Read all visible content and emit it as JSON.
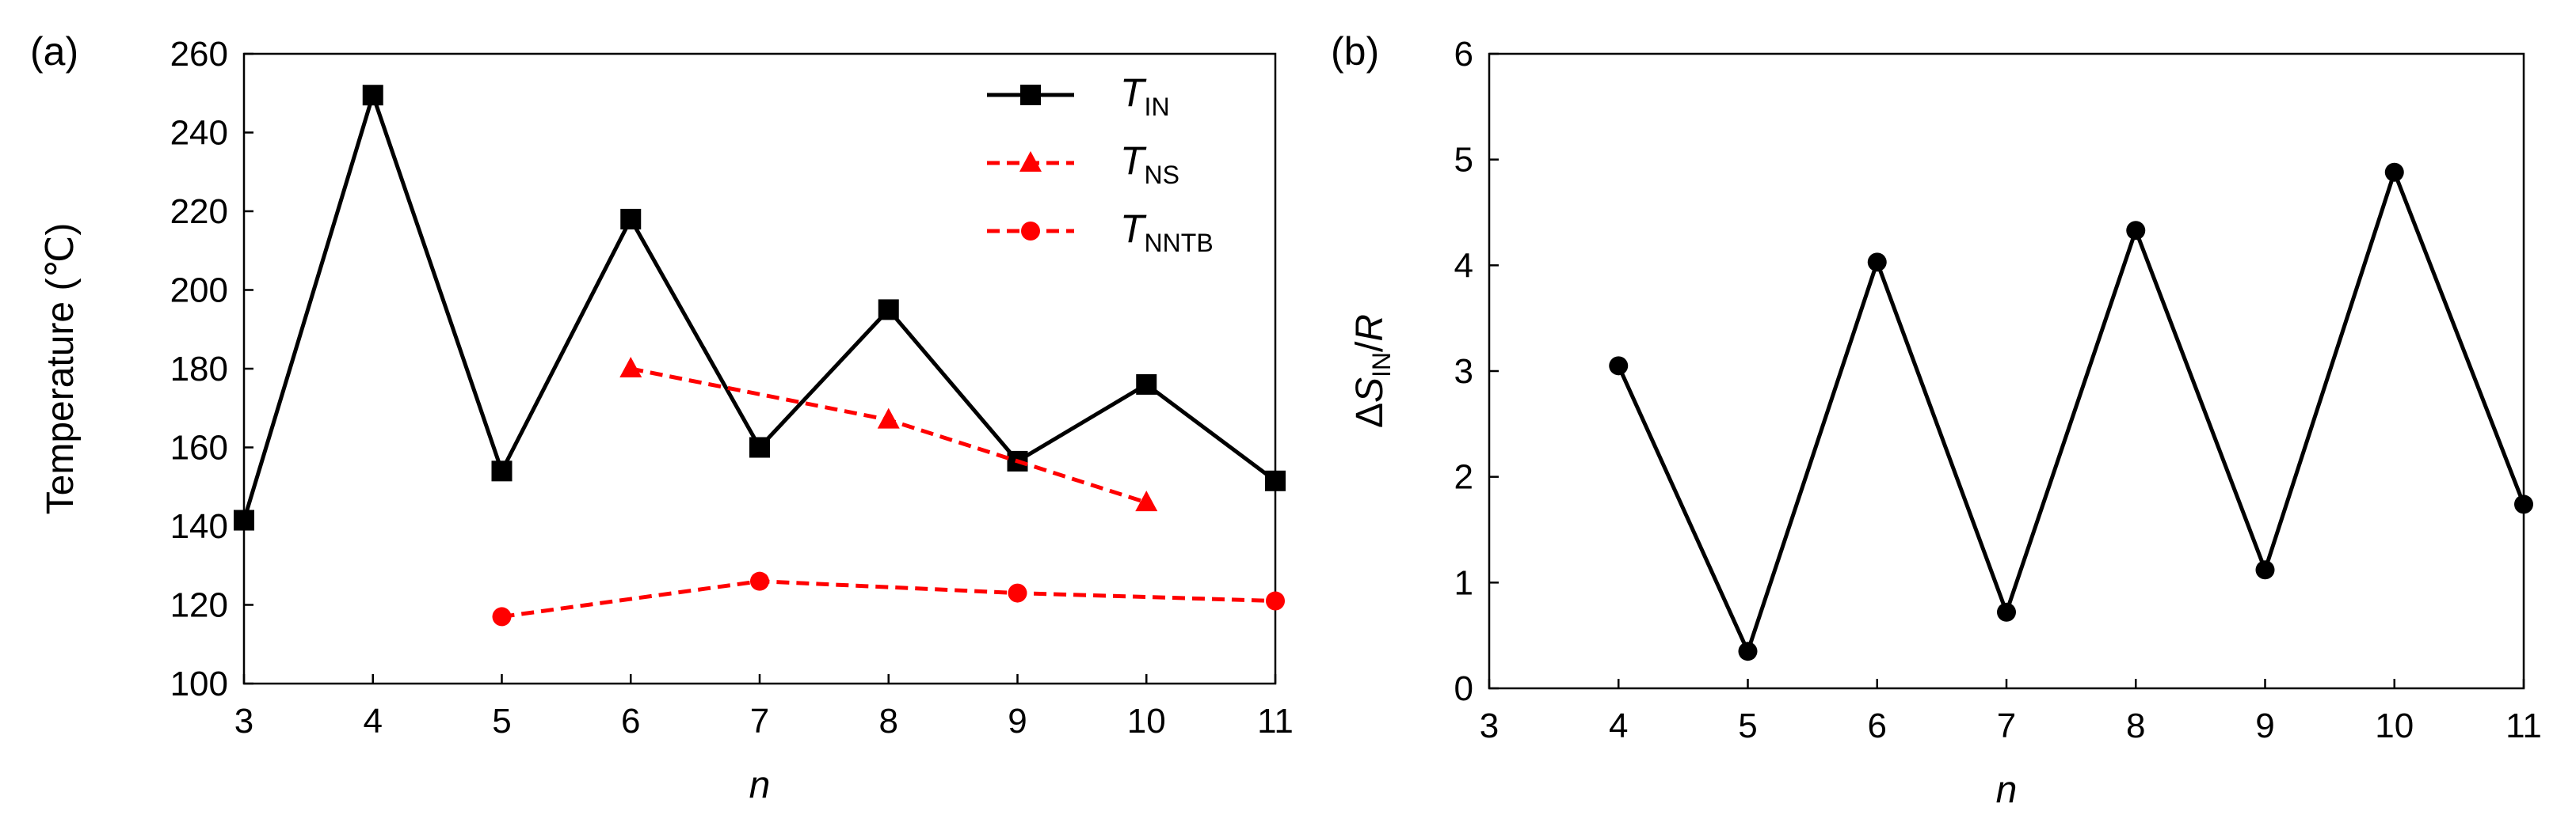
{
  "chart_data": [
    {
      "type": "line",
      "panel_label": "(a)",
      "xlabel": "n",
      "ylabel": "Temperature (℃)",
      "xlim": [
        3,
        11
      ],
      "ylim": [
        100,
        260
      ],
      "xticks": [
        "3",
        "4",
        "5",
        "6",
        "7",
        "8",
        "9",
        "10",
        "11"
      ],
      "yticks": [
        "100",
        "120",
        "140",
        "160",
        "180",
        "200",
        "220",
        "240",
        "260"
      ],
      "grid": false,
      "legend": {
        "position": "top-right"
      },
      "series": [
        {
          "name": "T_IN",
          "label_main": "T",
          "label_sub": "IN",
          "color": "#000000",
          "line": "solid",
          "marker": "square",
          "x": [
            3,
            4,
            5,
            6,
            7,
            8,
            9,
            10,
            11
          ],
          "y": [
            141.5,
            249.5,
            154,
            218,
            160,
            195,
            156.5,
            176,
            151.5
          ]
        },
        {
          "name": "T_NS",
          "label_main": "T",
          "label_sub": "NS",
          "color": "#ff0000",
          "line": "dashed",
          "marker": "triangle",
          "x": [
            6,
            8,
            10
          ],
          "y": [
            180,
            167,
            146
          ]
        },
        {
          "name": "T_NNTB",
          "label_main": "T",
          "label_sub": "NNTB",
          "color": "#ff0000",
          "line": "dashed",
          "marker": "circle",
          "x": [
            5,
            7,
            9,
            11
          ],
          "y": [
            117,
            126,
            123,
            121
          ]
        }
      ]
    },
    {
      "type": "line",
      "panel_label": "(b)",
      "xlabel": "n",
      "ylabel": "ΔS_IN/R",
      "ylabel_parts": {
        "delta": "Δ",
        "S": "S",
        "sub": "IN",
        "slash": "/",
        "R": "R"
      },
      "xlim": [
        3,
        11
      ],
      "ylim": [
        0,
        6
      ],
      "xticks": [
        "3",
        "4",
        "5",
        "6",
        "7",
        "8",
        "9",
        "10",
        "11"
      ],
      "yticks": [
        "0",
        "1",
        "2",
        "3",
        "4",
        "5",
        "6"
      ],
      "grid": false,
      "series": [
        {
          "name": "ΔS_IN/R",
          "color": "#000000",
          "line": "solid",
          "marker": "circle",
          "x": [
            4,
            5,
            6,
            7,
            8,
            9,
            10,
            11
          ],
          "y": [
            3.05,
            0.35,
            4.03,
            0.72,
            4.33,
            1.12,
            4.88,
            1.74
          ]
        }
      ]
    }
  ]
}
